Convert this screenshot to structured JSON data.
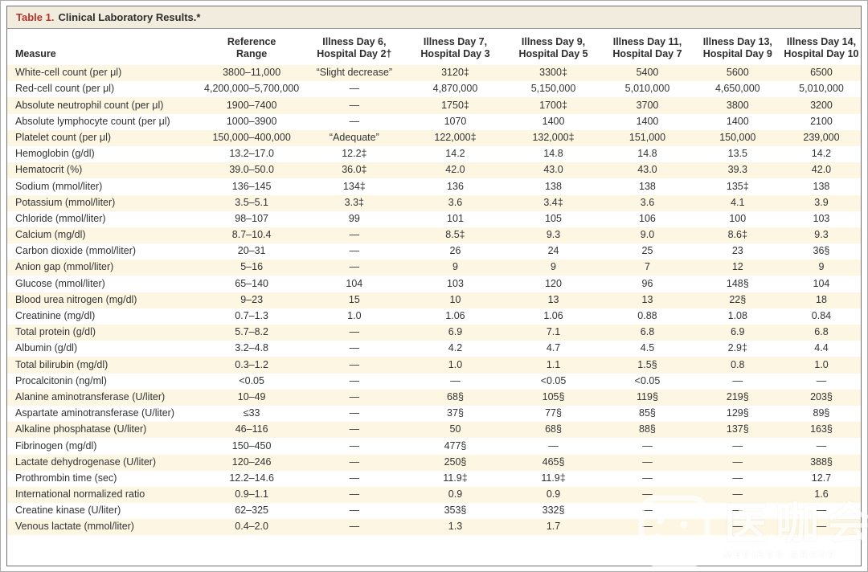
{
  "title": {
    "label": "Table 1.",
    "text": "Clinical Laboratory Results.*"
  },
  "table": {
    "columns": [
      "Measure",
      "Reference\nRange",
      "Illness Day 6,\nHospital Day 2†",
      "Illness Day 7,\nHospital Day 3",
      "Illness Day 9,\nHospital Day 5",
      "Illness Day 11,\nHospital Day 7",
      "Illness Day 13,\nHospital Day 9",
      "Illness Day 14,\nHospital Day 10"
    ],
    "rows": [
      [
        "White-cell count (per μl)",
        "3800–11,000",
        "“Slight decrease”",
        "3120‡",
        "3300‡",
        "5400",
        "5600",
        "6500"
      ],
      [
        "Red-cell count (per μl)",
        "4,200,000–5,700,000",
        "—",
        "4,870,000",
        "5,150,000",
        "5,010,000",
        "4,650,000",
        "5,010,000"
      ],
      [
        "Absolute neutrophil count (per μl)",
        "1900–7400",
        "—",
        "1750‡",
        "1700‡",
        "3700",
        "3800",
        "3200"
      ],
      [
        "Absolute lymphocyte count (per μl)",
        "1000–3900",
        "—",
        "1070",
        "1400",
        "1400",
        "1400",
        "2100"
      ],
      [
        "Platelet count (per μl)",
        "150,000–400,000",
        "“Adequate”",
        "122,000‡",
        "132,000‡",
        "151,000",
        "150,000",
        "239,000"
      ],
      [
        "Hemoglobin (g/dl)",
        "13.2–17.0",
        "12.2‡",
        "14.2",
        "14.8",
        "14.8",
        "13.5",
        "14.2"
      ],
      [
        "Hematocrit (%)",
        "39.0–50.0",
        "36.0‡",
        "42.0",
        "43.0",
        "43.0",
        "39.3",
        "42.0"
      ],
      [
        "Sodium (mmol/liter)",
        "136–145",
        "134‡",
        "136",
        "138",
        "138",
        "135‡",
        "138"
      ],
      [
        "Potassium (mmol/liter)",
        "3.5–5.1",
        "3.3‡",
        "3.6",
        "3.4‡",
        "3.6",
        "4.1",
        "3.9"
      ],
      [
        "Chloride (mmol/liter)",
        "98–107",
        "99",
        "101",
        "105",
        "106",
        "100",
        "103"
      ],
      [
        "Calcium (mg/dl)",
        "8.7–10.4",
        "—",
        "8.5‡",
        "9.3",
        "9.0",
        "8.6‡",
        "9.3"
      ],
      [
        "Carbon dioxide (mmol/liter)",
        "20–31",
        "—",
        "26",
        "24",
        "25",
        "23",
        "36§"
      ],
      [
        "Anion gap (mmol/liter)",
        "5–16",
        "—",
        "9",
        "9",
        "7",
        "12",
        "9"
      ],
      [
        "Glucose (mmol/liter)",
        "65–140",
        "104",
        "103",
        "120",
        "96",
        "148§",
        "104"
      ],
      [
        "Blood urea nitrogen (mg/dl)",
        "9–23",
        "15",
        "10",
        "13",
        "13",
        "22§",
        "18"
      ],
      [
        "Creatinine (mg/dl)",
        "0.7–1.3",
        "1.0",
        "1.06",
        "1.06",
        "0.88",
        "1.08",
        "0.84"
      ],
      [
        "Total protein (g/dl)",
        "5.7–8.2",
        "—",
        "6.9",
        "7.1",
        "6.8",
        "6.9",
        "6.8"
      ],
      [
        "Albumin (g/dl)",
        "3.2–4.8",
        "—",
        "4.2",
        "4.7",
        "4.5",
        "2.9‡",
        "4.4"
      ],
      [
        "Total bilirubin (mg/dl)",
        "0.3–1.2",
        "—",
        "1.0",
        "1.1",
        "1.5§",
        "0.8",
        "1.0"
      ],
      [
        "Procalcitonin (ng/ml)",
        "<0.05",
        "—",
        "—",
        "<0.05",
        "<0.05",
        "—",
        "—"
      ],
      [
        "Alanine aminotransferase (U/liter)",
        "10–49",
        "—",
        "68§",
        "105§",
        "119§",
        "219§",
        "203§"
      ],
      [
        "Aspartate aminotransferase (U/liter)",
        "≤33",
        "—",
        "37§",
        "77§",
        "85§",
        "129§",
        "89§"
      ],
      [
        "Alkaline phosphatase (U/liter)",
        "46–116",
        "—",
        "50",
        "68§",
        "88§",
        "137§",
        "163§"
      ],
      [
        "Fibrinogen (mg/dl)",
        "150–450",
        "—",
        "477§",
        "—",
        "—",
        "—",
        "—"
      ],
      [
        "Lactate dehydrogenase (U/liter)",
        "120–246",
        "—",
        "250§",
        "465§",
        "—",
        "—",
        "388§"
      ],
      [
        "Prothrombin time (sec)",
        "12.2–14.6",
        "—",
        "11.9‡",
        "11.9‡",
        "—",
        "—",
        "12.7"
      ],
      [
        "International normalized ratio",
        "0.9–1.1",
        "—",
        "0.9",
        "0.9",
        "—",
        "—",
        "1.6"
      ],
      [
        "Creatine kinase (U/liter)",
        "62–325",
        "—",
        "353§",
        "332§",
        "—",
        "—",
        "—"
      ],
      [
        "Venous lactate (mmol/liter)",
        "0.4–2.0",
        "—",
        "1.3",
        "1.7",
        "—",
        "—",
        "—"
      ]
    ]
  },
  "watermark": {
    "text_cn": "医咖会",
    "text_en": "MEDIEGO GROUP"
  },
  "colors": {
    "title_red": "#b5332c",
    "title_band_bg": "#f1ecdd",
    "stripe_bg": "#fcf6e3",
    "text": "#333333",
    "frame_border": "#6e6e6e"
  }
}
